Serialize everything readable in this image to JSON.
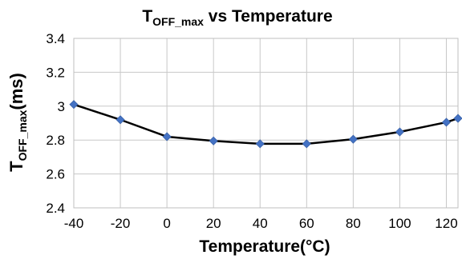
{
  "chart_data": {
    "type": "line",
    "title": {
      "main": "T",
      "sub": "OFF_max",
      "rest": " vs Temperature"
    },
    "xlabel": "Temperature(°C)",
    "ylabel": {
      "main": "T",
      "sub": "OFF_max",
      "rest": "(ms)"
    },
    "x": [
      -40,
      -20,
      0,
      20,
      40,
      60,
      80,
      100,
      120,
      125
    ],
    "series": [
      {
        "values": [
          3.01,
          2.92,
          2.82,
          2.795,
          2.778,
          2.778,
          2.805,
          2.848,
          2.905,
          2.928
        ]
      }
    ],
    "xlim": [
      -40,
      125
    ],
    "ylim": [
      2.4,
      3.4
    ],
    "xticks": [
      "-40",
      "-20",
      "0",
      "20",
      "40",
      "60",
      "80",
      "100",
      "120"
    ],
    "yticks": [
      "2.4",
      "2.6",
      "2.8",
      "3",
      "3.2",
      "3.4"
    ],
    "grid": true,
    "line_color": "#000000",
    "marker_color": "#4472C4",
    "marker": "diamond"
  }
}
